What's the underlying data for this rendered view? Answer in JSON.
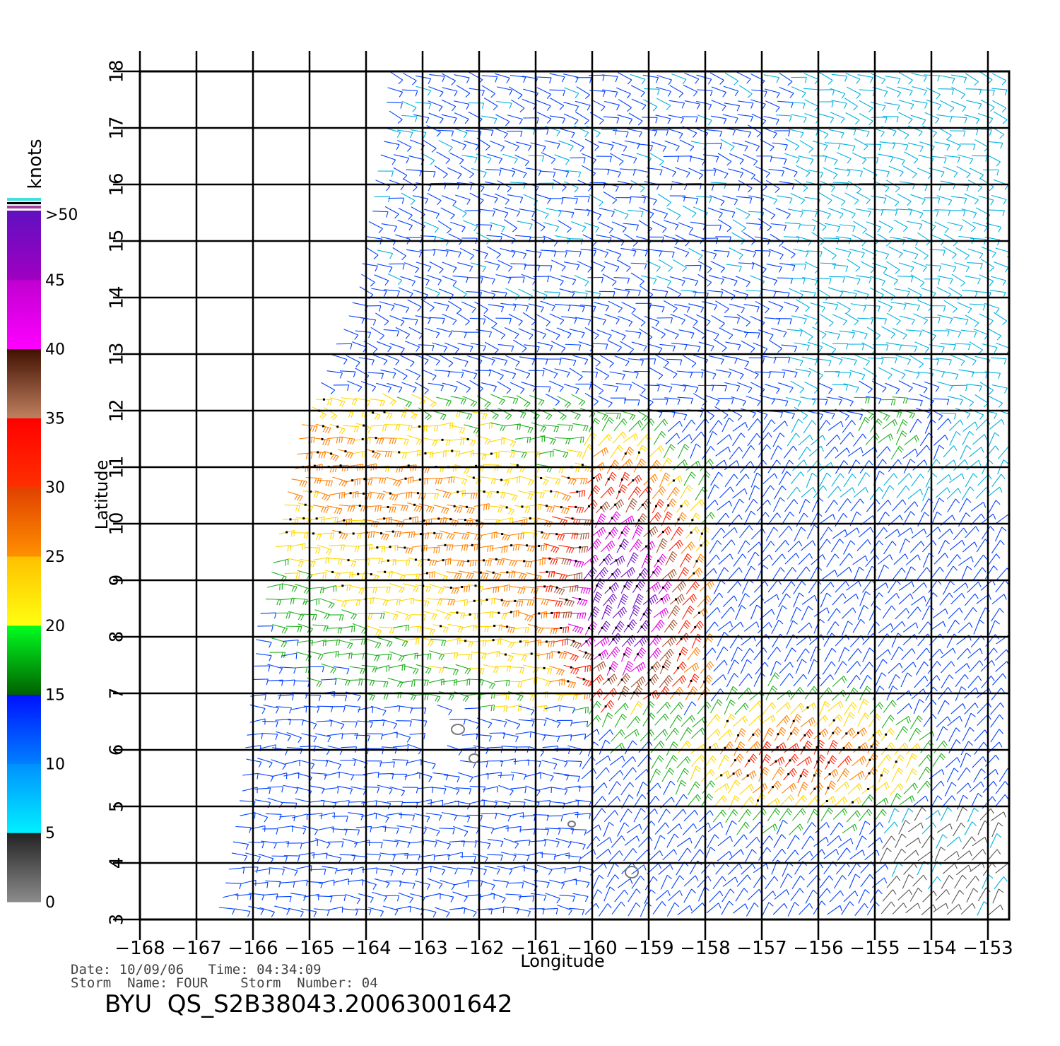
{
  "map": {
    "x_axis_title": "Longitude",
    "y_axis_title": "Latitude",
    "lon_ticks": [
      "−168",
      "−167",
      "−166",
      "−165",
      "−164",
      "−163",
      "−162",
      "−161",
      "−160",
      "−159",
      "−158",
      "−157",
      "−156",
      "−155",
      "−154",
      "−153"
    ],
    "lat_ticks": [
      "3",
      "4",
      "5",
      "6",
      "7",
      "8",
      "9",
      "10",
      "11",
      "12",
      "13",
      "14",
      "15",
      "16",
      "17",
      "18"
    ],
    "lon_range": [
      -168,
      -153
    ],
    "lat_range": [
      3,
      18
    ],
    "grid": true
  },
  "colorbar": {
    "unit_label": "knots",
    "top_label": ">50",
    "labels": [
      "0",
      "5",
      "10",
      "15",
      "20",
      "25",
      "30",
      "35",
      "40",
      "45"
    ],
    "segments": [
      {
        "from": 0,
        "to": 5,
        "colors": [
          "#8c8c8c",
          "#222222"
        ]
      },
      {
        "from": 5,
        "to": 10,
        "colors": [
          "#00f0ff",
          "#0090ff"
        ]
      },
      {
        "from": 10,
        "to": 15,
        "colors": [
          "#0080ff",
          "#0010ff"
        ]
      },
      {
        "from": 15,
        "to": 20,
        "colors": [
          "#006000",
          "#00ff20"
        ]
      },
      {
        "from": 20,
        "to": 25,
        "colors": [
          "#ffff10",
          "#ffc000"
        ]
      },
      {
        "from": 25,
        "to": 30,
        "colors": [
          "#ff9000",
          "#e04000"
        ]
      },
      {
        "from": 30,
        "to": 35,
        "colors": [
          "#ff3000",
          "#ff0000"
        ]
      },
      {
        "from": 35,
        "to": 40,
        "colors": [
          "#c08060",
          "#401000"
        ]
      },
      {
        "from": 40,
        "to": 45,
        "colors": [
          "#ff00ff",
          "#c000d0"
        ]
      },
      {
        "from": 45,
        "to": 50,
        "colors": [
          "#a000c0",
          "#6010c0"
        ]
      }
    ]
  },
  "speed_colors": [
    "#555555",
    "#00b0e0",
    "#0040ff",
    "#20b020",
    "#ffd800",
    "#ff8000",
    "#ff2000",
    "#a05030",
    "#e000e0",
    "#7010c0"
  ],
  "meta": {
    "date_line": "Date: 10/09/06   Time: 04:34:09",
    "storm_line": "Storm  Name: FOUR    Storm  Number: 04",
    "file_id": "BYU  QS_S2B38043.20063001642"
  }
}
